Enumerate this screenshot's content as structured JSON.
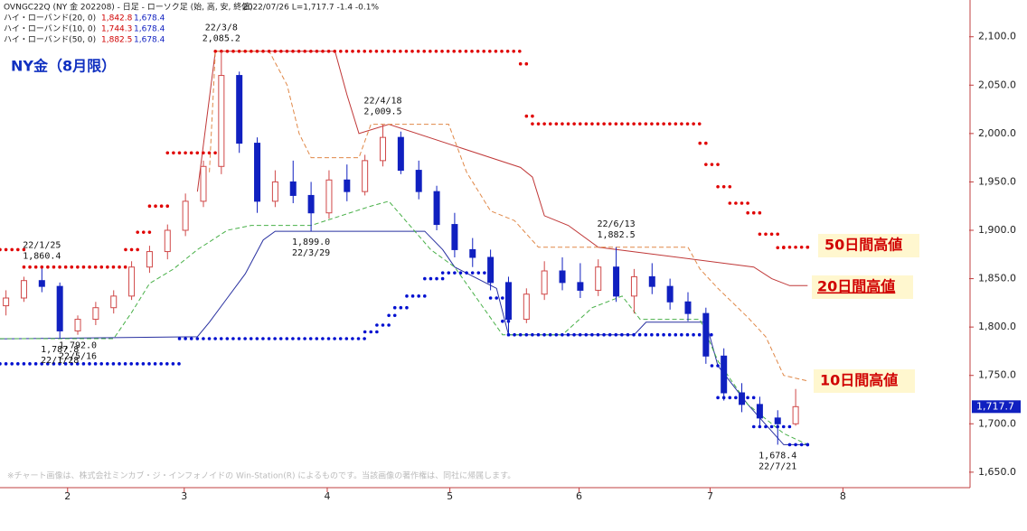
{
  "chart_data": {
    "type": "candlestick",
    "title": "NY金（8月限）",
    "header_title": "OVNGC22Q (NY 金 202208) - 日足 - ローソク足 (始, 高, 安, 終値)",
    "header_quote": "2022/07/26 L=1,717.7 -1.4 -0.1%",
    "notice": "※チャート画像は、株式会社ミンカブ・ジ・インフォノイドの Win-Station(R) によるものです。当該画像の著作権は、同社に帰属します。",
    "callouts": [
      "50日間高値",
      "20日間高値",
      "10日間高値"
    ],
    "xlim": [
      0,
      162
    ],
    "ylim": [
      1634,
      2138
    ],
    "xticks": [
      {
        "value": 11.3,
        "label": "2"
      },
      {
        "value": 30.8,
        "label": "3"
      },
      {
        "value": 54.7,
        "label": "4"
      },
      {
        "value": 75.2,
        "label": "5"
      },
      {
        "value": 96.8,
        "label": "6"
      },
      {
        "value": 118.7,
        "label": "7"
      },
      {
        "value": 140.9,
        "label": "8"
      }
    ],
    "yticks": [
      {
        "value": 1650,
        "label": "1,650.0"
      },
      {
        "value": 1700,
        "label": "1,700.0"
      },
      {
        "value": 1750,
        "label": "1,750.0"
      },
      {
        "value": 1800,
        "label": "1,800.0"
      },
      {
        "value": 1850,
        "label": "1,850.0"
      },
      {
        "value": 1900,
        "label": "1,900.0"
      },
      {
        "value": 1950,
        "label": "1,950.0"
      },
      {
        "value": 2000,
        "label": "2,000.0"
      },
      {
        "value": 2050,
        "label": "2,050.0"
      },
      {
        "value": 2100,
        "label": "2,100.0"
      }
    ],
    "candles": {
      "up_color": "#d04848",
      "down_color": "#1020c0",
      "x": [
        1,
        4,
        7,
        10,
        13,
        16,
        19,
        22,
        25,
        28,
        31,
        34,
        37,
        40,
        43,
        46,
        49,
        52,
        55,
        58,
        61,
        64,
        67,
        70,
        73,
        76,
        79,
        82,
        85,
        88,
        91,
        94,
        97,
        100,
        103,
        106,
        109,
        112,
        115,
        118,
        121,
        124,
        127,
        130,
        133
      ],
      "open": [
        1822,
        1830,
        1848,
        1842,
        1796,
        1808,
        1820,
        1832,
        1862,
        1878,
        1900,
        1930,
        1966,
        2060,
        1990,
        1930,
        1950,
        1936,
        1918,
        1952,
        1940,
        1972,
        1996,
        1962,
        1940,
        1906,
        1880,
        1872,
        1846,
        1808,
        1834,
        1858,
        1846,
        1838,
        1862,
        1832,
        1852,
        1842,
        1826,
        1814,
        1770,
        1732,
        1720,
        1706,
        1700
      ],
      "high": [
        1838,
        1852,
        1860.4,
        1846,
        1812,
        1826,
        1838,
        1868,
        1884,
        1906,
        1938,
        1972,
        2085.2,
        2064,
        1996,
        1962,
        1972,
        1950,
        1962,
        1968,
        1978,
        2009.5,
        2002,
        1972,
        1946,
        1918,
        1892,
        1880,
        1852,
        1840,
        1868,
        1872,
        1866,
        1870,
        1882.5,
        1860,
        1866,
        1850,
        1836,
        1820,
        1778,
        1742,
        1728,
        1714,
        1736
      ],
      "low": [
        1812,
        1826,
        1836,
        1787.8,
        1792,
        1802,
        1814,
        1828,
        1856,
        1870,
        1894,
        1924,
        1958,
        1980,
        1918,
        1924,
        1928,
        1899.0,
        1912,
        1930,
        1936,
        1966,
        1958,
        1932,
        1900,
        1872,
        1862,
        1838,
        1792.0,
        1804,
        1828,
        1838,
        1830,
        1832,
        1826,
        1814,
        1834,
        1818,
        1806,
        1762,
        1724,
        1712,
        1698,
        1678.4,
        1698
      ],
      "close": [
        1830,
        1848,
        1842,
        1796,
        1808,
        1820,
        1832,
        1862,
        1878,
        1900,
        1930,
        1966,
        2060,
        1990,
        1930,
        1950,
        1936,
        1918,
        1952,
        1940,
        1972,
        1996,
        1962,
        1940,
        1906,
        1880,
        1872,
        1846,
        1808,
        1834,
        1858,
        1846,
        1838,
        1862,
        1832,
        1852,
        1842,
        1826,
        1814,
        1770,
        1732,
        1720,
        1706,
        1700,
        1717.7
      ],
      "last_label": "1,717.7"
    },
    "annotations": [
      {
        "date": "22/1/25",
        "value": 1860.4,
        "label": "1,860.4"
      },
      {
        "date": "22/1/28",
        "value": 1787.8,
        "label": "1,787.8"
      },
      {
        "date": "22/3/8",
        "value": 2085.2,
        "label": "2,085.2"
      },
      {
        "date": "22/3/29",
        "value": 1899.0,
        "label": "1,899.0"
      },
      {
        "date": "22/4/18",
        "value": 2009.5,
        "label": "2,009.5"
      },
      {
        "date": "22/5/16",
        "value": 1792.0,
        "label": "1,792.0"
      },
      {
        "date": "22/6/13",
        "value": 1882.5,
        "label": "1,882.5"
      },
      {
        "date": "22/7/21",
        "value": 1678.4,
        "label": "1,678.4"
      }
    ],
    "bands": [
      {
        "name": "ハイ・ローバンド(20, 0)",
        "high": {
          "color": "#c03838",
          "style": "solid",
          "x": [
            33,
            36,
            56,
            58,
            60,
            65,
            87,
            89,
            91,
            95,
            100,
            126,
            129,
            132,
            135
          ],
          "values": [
            1940,
            2085,
            2085,
            2040,
            2000,
            2009.5,
            1965,
            1955,
            1915,
            1905,
            1882.5,
            1862,
            1850,
            1842.8,
            1842.8
          ],
          "last_label": "1,842.8"
        },
        "low": {
          "color": "#2830a0",
          "style": "solid",
          "x": [
            0,
            33,
            35,
            38,
            41,
            44,
            46,
            71,
            74,
            76,
            83,
            85,
            106,
            108,
            118,
            120,
            125,
            131,
            135
          ],
          "values": [
            1787.8,
            1790,
            1805,
            1830,
            1855,
            1890,
            1899,
            1899,
            1880,
            1862,
            1840,
            1792,
            1792,
            1805,
            1805,
            1760,
            1720,
            1678.4,
            1678.4
          ],
          "last_label": "1,678.4"
        }
      },
      {
        "name": "ハイ・ローバンド(10, 0)",
        "high": {
          "color": "#e08848",
          "style": "dashed",
          "x": [
            35,
            36,
            45,
            48,
            50,
            52,
            60,
            62,
            75,
            78,
            82,
            86,
            90,
            115,
            117,
            120,
            125,
            128,
            131,
            135
          ],
          "values": [
            1960,
            2085,
            2085,
            2050,
            2000,
            1975,
            1975,
            2009.5,
            2009.5,
            1960,
            1920,
            1910,
            1882.5,
            1882.5,
            1860,
            1840,
            1810,
            1790,
            1750,
            1744.3
          ],
          "last_label": "1,744.3"
        },
        "low": {
          "color": "#48b048",
          "style": "dashed",
          "x": [
            0,
            19,
            22,
            25,
            29,
            33,
            38,
            42,
            52,
            62,
            65,
            72,
            76,
            84,
            94,
            99,
            104,
            107,
            117,
            120,
            125,
            131,
            135
          ],
          "values": [
            1788,
            1788,
            1815,
            1845,
            1860,
            1880,
            1900,
            1905,
            1905,
            1925,
            1930,
            1880,
            1862,
            1792,
            1792,
            1820,
            1832,
            1808,
            1808,
            1765,
            1720,
            1690,
            1678.4
          ],
          "last_label": "1,678.4"
        }
      },
      {
        "name": "ハイ・ローバンド(50, 0)",
        "high": {
          "color": "#e00000",
          "style": "dotted",
          "x": [
            0,
            4,
            21,
            23,
            25,
            28,
            36,
            87,
            88,
            89,
            117,
            118,
            120,
            122,
            125,
            127,
            130,
            131,
            135
          ],
          "values": [
            1880,
            1862,
            1880,
            1898,
            1925,
            1980,
            2085,
            2072,
            2018,
            2010,
            1990,
            1968,
            1945,
            1928,
            1918,
            1896,
            1882,
            1882.5,
            1882.5
          ],
          "last_label": "1,882.5"
        },
        "low": {
          "color": "#0010d0",
          "style": "dotted",
          "x": [
            0,
            30,
            61,
            63,
            65,
            66,
            68,
            71,
            74,
            82,
            84,
            85,
            119,
            120,
            126,
            132,
            135
          ],
          "values": [
            1762,
            1788,
            1795,
            1802,
            1812,
            1820,
            1832,
            1850,
            1856,
            1830,
            1806,
            1792,
            1760,
            1727,
            1697,
            1678.4,
            1678.4
          ],
          "last_label": "1,678.4"
        }
      }
    ]
  }
}
